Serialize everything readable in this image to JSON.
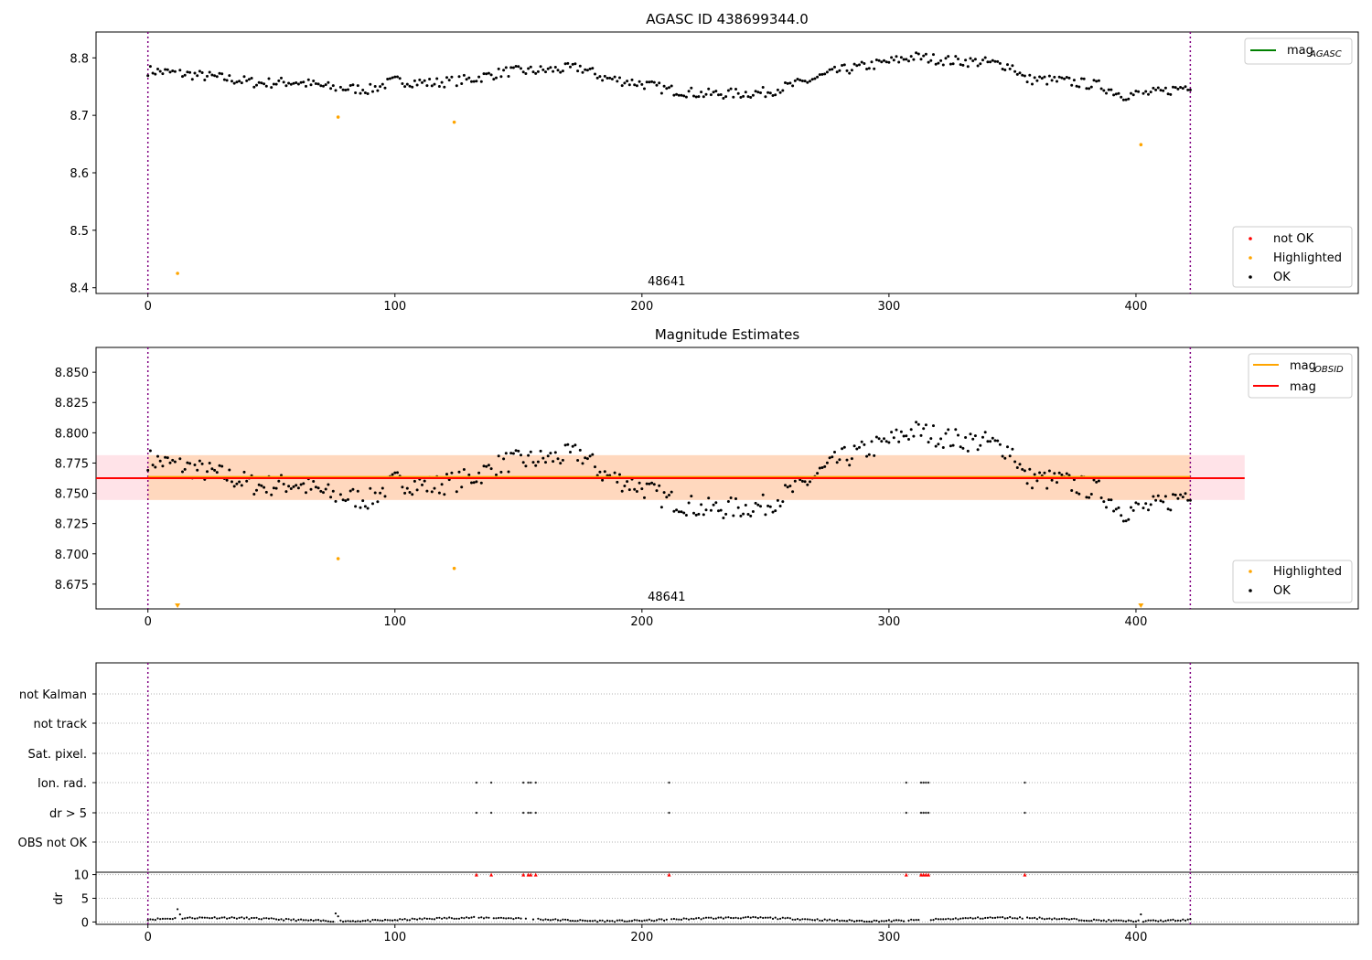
{
  "chart_data": [
    {
      "type": "scatter",
      "title": "AGASC ID 438699344.0",
      "xlabel": "",
      "ylabel": "",
      "xlim": [
        -21,
        490
      ],
      "ylim": [
        8.39,
        8.845
      ],
      "xticks": [
        0,
        100,
        200,
        300,
        400
      ],
      "yticks": [
        8.4,
        8.5,
        8.6,
        8.7,
        8.8
      ],
      "ytick_labels": [
        "8.4",
        "8.5",
        "8.6",
        "8.7",
        "8.8"
      ],
      "grid": false,
      "vlines": [
        0,
        422
      ],
      "annotation": "48641",
      "legend_top": {
        "placement": "top-right",
        "entries": [
          {
            "label_main": "mag",
            "label_sub": "AGASC",
            "color": "#008000"
          }
        ]
      },
      "legend_bottom": {
        "placement": "bottom-right",
        "entries": [
          {
            "label": "not OK",
            "color": "#ff0000"
          },
          {
            "label": "Highlighted",
            "color": "#ffa500"
          },
          {
            "label": "OK",
            "color": "#000000"
          }
        ]
      },
      "series": [
        {
          "name": "Highlighted",
          "color": "#ffa500",
          "points": [
            [
              12,
              8.425
            ],
            [
              77,
              8.697
            ],
            [
              124,
              8.688
            ],
            [
              402,
              8.649
            ]
          ]
        },
        {
          "name": "OK",
          "color": "#000000",
          "trend": [
            [
              0,
              8.778
            ],
            [
              15,
              8.772
            ],
            [
              30,
              8.765
            ],
            [
              45,
              8.756
            ],
            [
              60,
              8.758
            ],
            [
              75,
              8.748
            ],
            [
              90,
              8.745
            ],
            [
              100,
              8.76
            ],
            [
              115,
              8.756
            ],
            [
              130,
              8.762
            ],
            [
              145,
              8.776
            ],
            [
              160,
              8.778
            ],
            [
              175,
              8.783
            ],
            [
              185,
              8.765
            ],
            [
              200,
              8.755
            ],
            [
              210,
              8.745
            ],
            [
              225,
              8.737
            ],
            [
              240,
              8.738
            ],
            [
              250,
              8.74
            ],
            [
              265,
              8.757
            ],
            [
              280,
              8.778
            ],
            [
              290,
              8.785
            ],
            [
              300,
              8.793
            ],
            [
              310,
              8.802
            ],
            [
              325,
              8.795
            ],
            [
              340,
              8.792
            ],
            [
              350,
              8.785
            ],
            [
              355,
              8.763
            ],
            [
              370,
              8.76
            ],
            [
              385,
              8.752
            ],
            [
              395,
              8.735
            ],
            [
              410,
              8.74
            ],
            [
              422,
              8.752
            ]
          ]
        }
      ]
    },
    {
      "type": "scatter",
      "title": "Magnitude Estimates",
      "xlabel": "",
      "ylabel": "",
      "xlim": [
        -21,
        490
      ],
      "ylim": [
        8.6545,
        8.8705
      ],
      "xticks": [
        0,
        100,
        200,
        300,
        400
      ],
      "yticks": [
        8.675,
        8.7,
        8.725,
        8.75,
        8.775,
        8.8,
        8.825,
        8.85
      ],
      "ytick_labels": [
        "8.675",
        "8.700",
        "8.725",
        "8.750",
        "8.775",
        "8.800",
        "8.825",
        "8.850"
      ],
      "grid": false,
      "vlines": [
        0,
        422
      ],
      "annotation": "48641",
      "mag_obsid": {
        "value": 8.7635,
        "x_range": [
          0,
          422
        ],
        "color": "#ffa500"
      },
      "mag": {
        "value": 8.7625,
        "band": [
          8.7445,
          8.7815
        ],
        "x_range": [
          -21,
          444
        ],
        "color": "#ff0000"
      },
      "legend_top": {
        "placement": "top-right",
        "entries": [
          {
            "label_main": "mag",
            "label_sub": "OBSID",
            "color": "#ffa500"
          },
          {
            "label_main": "mag",
            "label_sub": "",
            "color": "#ff0000"
          }
        ]
      },
      "legend_bottom": {
        "placement": "bottom-right",
        "entries": [
          {
            "label": "Highlighted",
            "color": "#ffa500"
          },
          {
            "label": "OK",
            "color": "#000000"
          }
        ]
      },
      "series": [
        {
          "name": "Highlighted",
          "color": "#ffa500",
          "points": [
            [
              77,
              8.696
            ],
            [
              124,
              8.688
            ]
          ],
          "below_axis": [
            12,
            402
          ]
        },
        {
          "name": "OK",
          "color": "#000000",
          "trend": [
            [
              0,
              8.778
            ],
            [
              15,
              8.772
            ],
            [
              30,
              8.765
            ],
            [
              45,
              8.756
            ],
            [
              60,
              8.758
            ],
            [
              75,
              8.748
            ],
            [
              90,
              8.745
            ],
            [
              100,
              8.76
            ],
            [
              115,
              8.756
            ],
            [
              130,
              8.762
            ],
            [
              145,
              8.776
            ],
            [
              160,
              8.778
            ],
            [
              175,
              8.783
            ],
            [
              185,
              8.765
            ],
            [
              200,
              8.755
            ],
            [
              210,
              8.745
            ],
            [
              225,
              8.737
            ],
            [
              240,
              8.738
            ],
            [
              250,
              8.74
            ],
            [
              265,
              8.757
            ],
            [
              280,
              8.778
            ],
            [
              290,
              8.785
            ],
            [
              300,
              8.793
            ],
            [
              310,
              8.802
            ],
            [
              325,
              8.795
            ],
            [
              340,
              8.792
            ],
            [
              350,
              8.785
            ],
            [
              355,
              8.763
            ],
            [
              370,
              8.76
            ],
            [
              385,
              8.752
            ],
            [
              395,
              8.735
            ],
            [
              410,
              8.74
            ],
            [
              422,
              8.752
            ]
          ]
        }
      ]
    },
    {
      "type": "scatter",
      "title": "",
      "xlabel": "",
      "ylabel": "",
      "xlim": [
        -21,
        490
      ],
      "flag_labels": [
        "not Kalman",
        "not track",
        "Sat. pixel.",
        "Ion. rad.",
        "dr > 5",
        "OBS not OK"
      ],
      "vlines": [
        0,
        422
      ],
      "flags": {
        "Ion. rad.": [
          133,
          139,
          152,
          154,
          155,
          157,
          211,
          307,
          313,
          314,
          315,
          316,
          355
        ],
        "dr > 5": [
          133,
          139,
          152,
          154,
          155,
          157,
          211,
          307,
          313,
          314,
          315,
          316,
          355
        ]
      }
    },
    {
      "type": "scatter",
      "title": "",
      "xlabel": "",
      "ylabel": "dr",
      "xlim": [
        -21,
        490
      ],
      "ylim": [
        -0.5,
        10.5
      ],
      "xticks": [
        0,
        100,
        200,
        300,
        400
      ],
      "yticks": [
        0,
        5,
        10
      ],
      "ytick_labels": [
        "0",
        "5",
        "10"
      ],
      "grid": true,
      "vlines": [
        0,
        422
      ],
      "clipped_markers": {
        "color": "#ff0000",
        "value": 10,
        "x": [
          133,
          139,
          152,
          154,
          155,
          157,
          211,
          307,
          313,
          314,
          315,
          316,
          355
        ]
      },
      "series": [
        {
          "name": "OK",
          "color": "#000000",
          "points": [
            [
              12,
              2.7
            ],
            [
              13,
              1.6
            ],
            [
              76,
              1.8
            ],
            [
              77,
              1.2
            ],
            [
              402,
              1.6
            ]
          ]
        }
      ]
    }
  ]
}
